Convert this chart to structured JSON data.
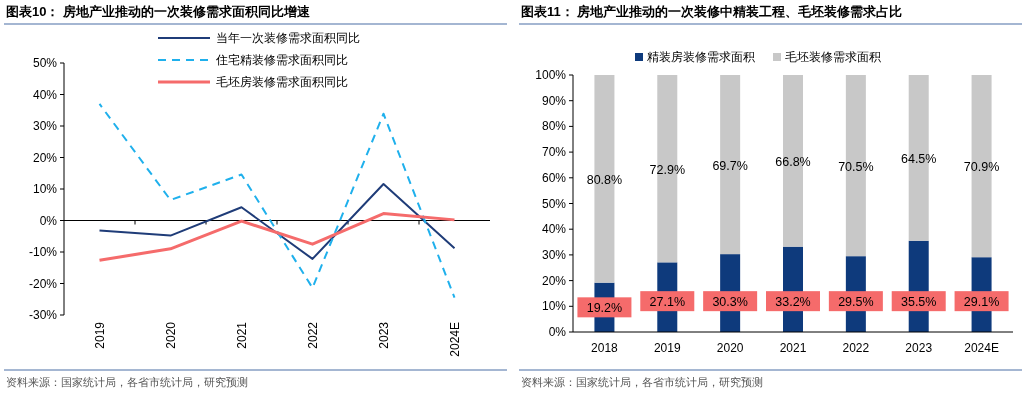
{
  "chart_data": [
    {
      "type": "line",
      "title": "图表10： 房地产业推动的一次装修需求面积同比增速",
      "categories": [
        "2019",
        "2020",
        "2021",
        "2022",
        "2023",
        "2024E"
      ],
      "series": [
        {
          "name": "当年一次装修需求面积同比",
          "color": "#1f3c78",
          "values": [
            -3.2,
            -4.8,
            4.2,
            -12.2,
            11.6,
            -8.8
          ]
        },
        {
          "name": "住宅精装修需求面积同比",
          "color": "#1fb0ec",
          "line_style": "dashed",
          "values": [
            37,
            6.5,
            14.6,
            -21.4,
            33.9,
            -24.5
          ]
        },
        {
          "name": "毛坯房装修需求面积同比",
          "color": "#f56b6b",
          "values": [
            -12.6,
            -9,
            -0.2,
            -7.5,
            2.2,
            0.2
          ]
        }
      ],
      "ylim": [
        -30,
        50
      ],
      "yticks": [
        {
          "value": -30,
          "label": "-30%"
        },
        {
          "value": -20,
          "label": "-20%"
        },
        {
          "value": -10,
          "label": "-10%"
        },
        {
          "value": 0,
          "label": "0%"
        },
        {
          "value": 10,
          "label": "10%"
        },
        {
          "value": 20,
          "label": "20%"
        },
        {
          "value": 30,
          "label": "30%"
        },
        {
          "value": 40,
          "label": "40%"
        },
        {
          "value": 50,
          "label": "50%"
        }
      ],
      "legend": "top",
      "marker": "none",
      "line_style": "solid",
      "annotations": [
        "资料来源：国家统计局，各省市统计局，研究预测"
      ]
    },
    {
      "type": "bar",
      "stacked": true,
      "title": "图表11： 房地产业推动的一次装修中精装工程、毛坯装修需求占比",
      "categories": [
        "2018",
        "2019",
        "2020",
        "2021",
        "2022",
        "2023",
        "2024E"
      ],
      "series": [
        {
          "name": "精装房装修需求面积",
          "color": "#0e3a7c",
          "values": [
            19.2,
            27.1,
            30.3,
            33.2,
            29.5,
            35.5,
            29.1
          ],
          "value_labels": [
            "19.2%",
            "27.1%",
            "30.3%",
            "33.2%",
            "29.5%",
            "35.5%",
            "29.1%"
          ]
        },
        {
          "name": "毛坯装修需求面积",
          "color": "#c8c8c8",
          "values": [
            80.8,
            72.9,
            69.7,
            66.8,
            70.5,
            64.5,
            70.9
          ],
          "value_labels": [
            "80.8%",
            "72.9%",
            "69.7%",
            "66.8%",
            "70.5%",
            "64.5%",
            "70.9%"
          ]
        }
      ],
      "ylim": [
        0,
        100
      ],
      "yticks": [
        {
          "value": 0,
          "label": "0%"
        },
        {
          "value": 10,
          "label": "10%"
        },
        {
          "value": 20,
          "label": "20%"
        },
        {
          "value": 30,
          "label": "30%"
        },
        {
          "value": 40,
          "label": "40%"
        },
        {
          "value": 50,
          "label": "50%"
        },
        {
          "value": 60,
          "label": "60%"
        },
        {
          "value": 70,
          "label": "70%"
        },
        {
          "value": 80,
          "label": "80%"
        },
        {
          "value": 90,
          "label": "90%"
        },
        {
          "value": 100,
          "label": "100%"
        }
      ],
      "legend": "top",
      "annotations": [
        "资料来源：国家统计局，各省市统计局，研究预测"
      ]
    }
  ]
}
